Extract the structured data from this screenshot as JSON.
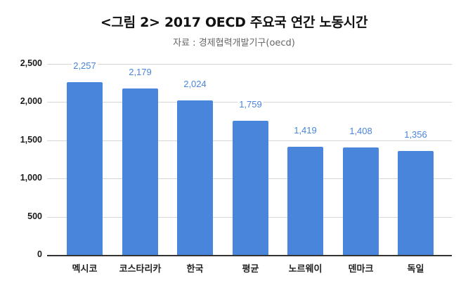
{
  "header": {
    "title": "<그림 2> 2017 OECD 주요국 연간 노동시간",
    "subtitle": "자료 : 경제협력개발기구(oecd)"
  },
  "colors": {
    "bar": "#4a85dc",
    "data_label": "#4a85dc",
    "gridline": "#d6d6d6",
    "axis": "#333333"
  },
  "chart_data": {
    "type": "bar",
    "title": "<그림 2> 2017 OECD 주요국 연간 노동시간",
    "subtitle": "자료 : 경제협력개발기구(oecd)",
    "categories": [
      "멕시코",
      "코스타리카",
      "한국",
      "평균",
      "노르웨이",
      "덴마크",
      "독일"
    ],
    "values": [
      2257,
      2179,
      2024,
      1759,
      1419,
      1408,
      1356
    ],
    "value_labels": [
      "2,257",
      "2,179",
      "2,024",
      "1,759",
      "1,419",
      "1,408",
      "1,356"
    ],
    "xlabel": "",
    "ylabel": "",
    "ylim": [
      0,
      2500
    ],
    "yticks": [
      0,
      500,
      1000,
      1500,
      2000,
      2500
    ],
    "ytick_labels": [
      "0",
      "500",
      "1,000",
      "1,500",
      "2,000",
      "2,500"
    ],
    "grid": true,
    "legend": "none"
  }
}
